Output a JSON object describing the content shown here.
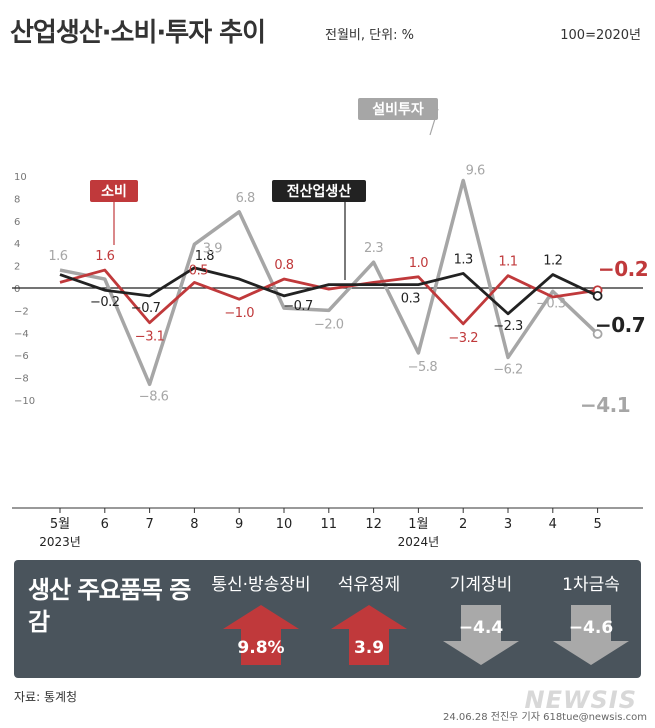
{
  "header": {
    "title": "산업생산·소비·투자 추이",
    "subtitle": "전월비, 단위: %",
    "base": "100=2020년"
  },
  "chart_data": {
    "type": "line",
    "categories": [
      "5월",
      "6",
      "7",
      "8",
      "9",
      "10",
      "11",
      "12",
      "1월",
      "2",
      "3",
      "4",
      "5"
    ],
    "year_labels": [
      "2023년",
      "2024년"
    ],
    "yticks": [
      "10",
      "8",
      "6",
      "4",
      "2",
      "0",
      "−2",
      "−4",
      "−6",
      "−8",
      "−10"
    ],
    "ylim": [
      -10,
      10
    ],
    "series": [
      {
        "name": "전산업생산",
        "color": "#222222",
        "values": [
          1.2,
          -0.2,
          -0.7,
          1.8,
          0.8,
          -0.7,
          0.3,
          0.3,
          0.3,
          1.3,
          -2.3,
          1.2,
          -0.7
        ],
        "labels": [
          "",
          "−0.2",
          "−0.7",
          "1.8",
          "",
          "−0.7",
          "",
          "",
          "0.3",
          "1.3",
          "−2.3",
          "1.2",
          "−0.7"
        ]
      },
      {
        "name": "소비",
        "color": "#c0393b",
        "values": [
          0.5,
          1.6,
          -3.1,
          0.5,
          -1.0,
          0.8,
          -0.1,
          0.5,
          1.0,
          -3.2,
          1.1,
          -0.8,
          -0.2
        ],
        "labels": [
          "",
          "1.6",
          "−3.1",
          "0.5",
          "−1.0",
          "0.8",
          "",
          "",
          "1.0",
          "−3.2",
          "1.1",
          "",
          "−0.2"
        ]
      },
      {
        "name": "설비투자",
        "color": "#a6a6a6",
        "values": [
          1.6,
          0.8,
          -8.6,
          3.9,
          6.8,
          -1.8,
          -2.0,
          2.3,
          -5.8,
          9.6,
          -6.2,
          -0.3,
          -4.1
        ],
        "labels": [
          "1.6",
          "",
          "−8.6",
          "3.9",
          "6.8",
          "",
          "−2.0",
          "2.3",
          "−5.8",
          "9.6",
          "−6.2",
          "−0.3",
          "−4.1"
        ]
      }
    ]
  },
  "panel": {
    "title": "생산 주요품목 증감",
    "items": [
      {
        "name": "통신·방송장비",
        "value": "9.8%",
        "direction": "up",
        "color": "#c0393b"
      },
      {
        "name": "석유정제",
        "value": "3.9",
        "direction": "up",
        "color": "#c0393b"
      },
      {
        "name": "기계장비",
        "value": "−4.4",
        "direction": "down",
        "color": "#a9a9a9"
      },
      {
        "name": "1차금속",
        "value": "−4.6",
        "direction": "down",
        "color": "#a9a9a9"
      }
    ]
  },
  "footer": {
    "source": "자료: 통계청",
    "credit": "24.06.28 전진우 기자 618tue@newsis.com",
    "logo": "NEWSIS"
  }
}
